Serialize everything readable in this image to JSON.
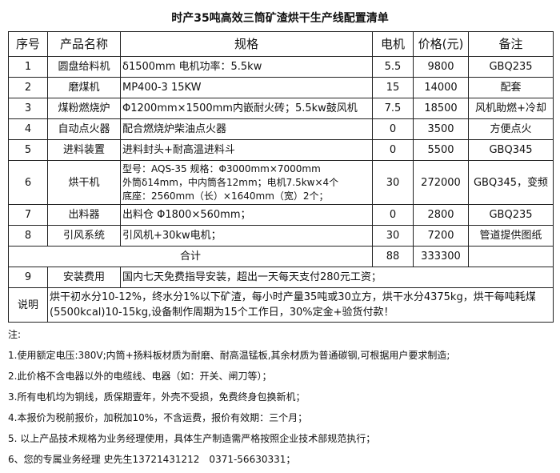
{
  "title": "时产35吨高效三筒矿渣烘干生产线配置清单",
  "headers": [
    "序号",
    "产品名称",
    "规格",
    "电机",
    "价格(元)",
    "备注"
  ],
  "rows": [
    {
      "no": "1",
      "name": "圆盘给料机",
      "spec": "δ1500mm 电机功率：5.5kw",
      "motor": "5.5",
      "price": "9800",
      "note": "GBQ235"
    },
    {
      "no": "2",
      "name": "磨煤机",
      "spec": "MP400-3 15KW",
      "motor": "15",
      "price": "14000",
      "note": "配套"
    },
    {
      "no": "3",
      "name": "煤粉燃烧炉",
      "spec": "Φ1200mm×1500mm内嵌耐火砖；5.5kw鼓风机",
      "motor": "7.5",
      "price": "18500",
      "note": "风机助燃+冷却"
    },
    {
      "no": "4",
      "name": "自动点火器",
      "spec": "配合燃烧炉柴油点火器",
      "motor": "0",
      "price": "3500",
      "note": "方便点火"
    },
    {
      "no": "5",
      "name": "进料装置",
      "spec": "进料封头+耐高温进料斗",
      "motor": "0",
      "price": "5500",
      "note": "GBQ345"
    },
    {
      "no": "6",
      "name": "烘干机",
      "spec_lines": [
        "型号：AQS-35 规格：Φ3000mm×7000mm",
        "外筒δ14mm，中内筒各12mm；电机7.5kw×4个",
        "底座：2560mm（长）×1640mm（宽）2个；"
      ],
      "motor": "30",
      "price": "272000",
      "note": "GBQ345，变频"
    },
    {
      "no": "7",
      "name": "出料器",
      "spec": "出料仓 Φ1800×560mm；",
      "motor": "0",
      "price": "2800",
      "note": "GBQ235"
    },
    {
      "no": "8",
      "name": "引风系统",
      "spec": "引风机+30kw电机；",
      "motor": "30",
      "price": "7200",
      "note": "管道提供图纸"
    }
  ],
  "total": {
    "label": "合计",
    "motor": "88",
    "price": "333300"
  },
  "install": {
    "no": "9",
    "name": "安装费用",
    "text": "国内七天免费指导安装，超出一天每天支付280元工资；"
  },
  "explain": {
    "label": "说明",
    "text": "烘干初水分10-12%，终水分1%以下矿渣，每小时产量35吨或30立方，烘干水分4375kg，烘干每吨耗煤(5500kcal)10-15kg,设备制作周期为15个工作日，30%定金+验货付款！"
  },
  "notes": {
    "heading": "注:",
    "items": [
      "1.使用额定电压:380V;内筒+扬料板材质为耐磨、耐高温锰板,其余材质为普通碳钢,可根据用户要求制造;",
      "2.此价格不含电器以外的电缆线、电器（如：开关、闸刀等）；",
      "3.所有电机均为铜线，质保期壹年，外壳不受损，免费终身包换新机；",
      "4.本报价为税前报价，加税加10%，不含运费，报价有效期：三个月；",
      "5. 以上产品技术规格为业务经理使用，具体生产制造需严格按照企业技术部规范执行；",
      "6、您的专属业务经理 史先生13721431212　0371-56630331；"
    ]
  }
}
